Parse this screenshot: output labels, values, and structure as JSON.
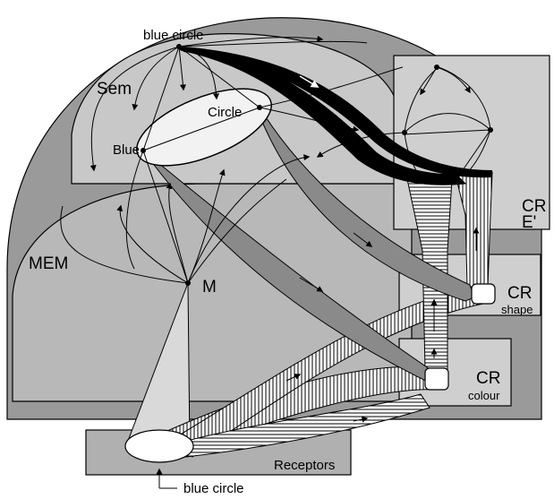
{
  "labels": {
    "sem": "Sem",
    "mem": "MEM",
    "m": "M",
    "blue_circle_top": "blue circle",
    "circle": "Circle",
    "blue": "Blue",
    "cr_e_cr": "CR",
    "cr_e_e": "E'",
    "cr_shape_cr": "CR",
    "cr_shape_sub": "shape",
    "cr_colour_cr": "CR",
    "cr_colour_sub": "colour",
    "receptors": "Receptors",
    "input": "blue circle"
  },
  "colors": {
    "outer_region": "#9a9a9a",
    "mem_region": "#b8b8b8",
    "sem_region": "#c8c8c8",
    "cr_box": "#cfcfcf",
    "concept_ellipse": "#f2f2f2",
    "black_pathway": "#000000",
    "gray_pathway": "#8a8a8a",
    "light_cone": "#d9d9d9"
  }
}
